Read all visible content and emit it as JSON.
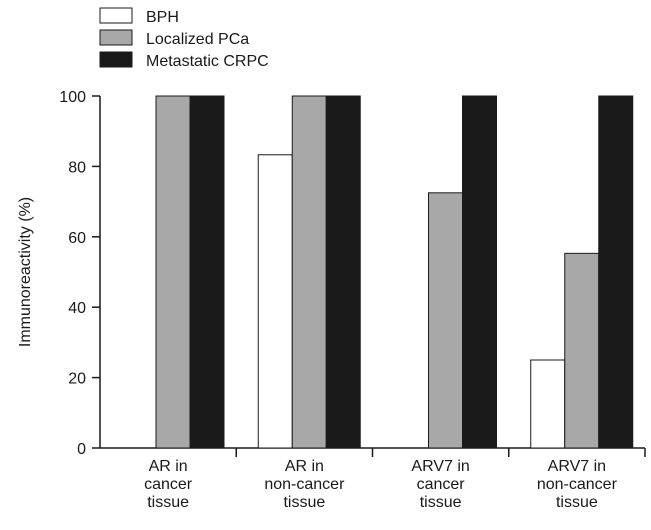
{
  "chart_data": {
    "type": "bar",
    "ylabel": "Immunoreactivity (%)",
    "xlabel": "",
    "ylim": [
      0,
      100
    ],
    "yticks": [
      0,
      20,
      40,
      60,
      80,
      100
    ],
    "categories": [
      [
        "AR in",
        "cancer",
        "tissue"
      ],
      [
        "AR in",
        "non-cancer",
        "tissue"
      ],
      [
        "ARV7 in",
        "cancer",
        "tissue"
      ],
      [
        "ARV7 in",
        "non-cancer",
        "tissue"
      ]
    ],
    "series": [
      {
        "name": "BPH",
        "color": "#ffffff",
        "values": [
          0,
          83.3,
          0,
          25
        ]
      },
      {
        "name": "Localized PCa",
        "color": "#a8a8a8",
        "values": [
          100,
          100,
          72.5,
          55.3
        ]
      },
      {
        "name": "Metastatic CRPC",
        "color": "#1a1a1a",
        "values": [
          100,
          100,
          100,
          100
        ]
      }
    ],
    "legend_position": "top-left"
  }
}
